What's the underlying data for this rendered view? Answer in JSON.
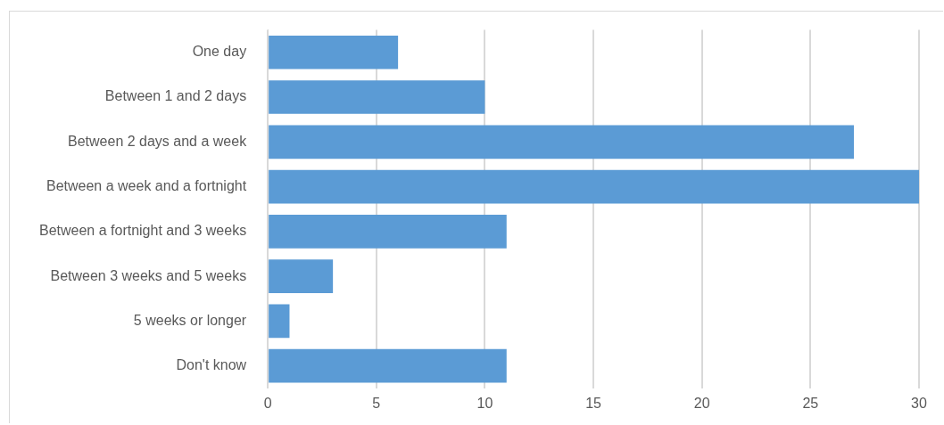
{
  "chart_data": {
    "type": "bar",
    "orientation": "horizontal",
    "categories": [
      "One day",
      "Between 1 and 2 days",
      "Between 2 days and a week",
      "Between a week and a fortnight",
      "Between a fortnight and 3 weeks",
      "Between 3 weeks and 5 weeks",
      "5 weeks or longer",
      "Don't know"
    ],
    "values": [
      6,
      10,
      27,
      30,
      11,
      3,
      1,
      11
    ],
    "color": "#5b9bd5",
    "xlim": [
      0,
      30
    ],
    "xticks": [
      0,
      5,
      10,
      15,
      20,
      25,
      30
    ],
    "grid": "x",
    "legend": false
  }
}
